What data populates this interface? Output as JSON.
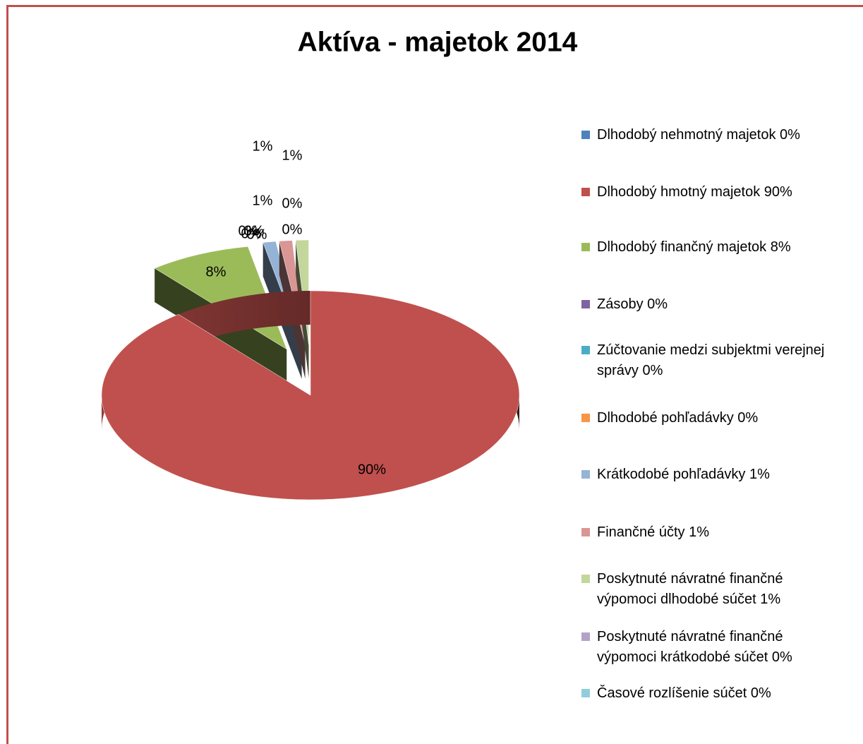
{
  "chart_data": {
    "type": "pie3d",
    "title": "Aktíva - majetok 2014",
    "categories": [
      "Dlhodobý nehmotný majetok  0%",
      "Dlhodobý hmotný majetok 90%",
      "Dlhodobý finančný majetok  8%",
      "Zásoby 0%",
      "Zúčtovanie medzi subjektmi verejnej správy 0%",
      "Dlhodobé pohľadávky 0%",
      "Krátkodobé pohľadávky 1%",
      "Finančné účty 1%",
      "Poskytnuté návratné finančné výpomoci dlhodobé súčet 1%",
      "Poskytnuté návratné finančné výpomoci krátkodobé súčet 0%",
      "Časové rozlíšenie súčet 0%"
    ],
    "values": [
      0,
      90,
      8,
      0,
      0,
      0,
      1,
      1,
      1,
      0,
      0
    ],
    "value_labels": [
      "0%",
      "90%",
      "8%",
      "0%",
      "0%",
      "0%",
      "1%",
      "1%",
      "1%",
      "0%",
      "0%"
    ],
    "colors": [
      "#4F81BD",
      "#C0504D",
      "#9BBB59",
      "#8064A2",
      "#4BACC6",
      "#F79646",
      "#95B3D7",
      "#D99694",
      "#C3D69B",
      "#B3A2C7",
      "#92CDDC"
    ],
    "legend": "right"
  }
}
